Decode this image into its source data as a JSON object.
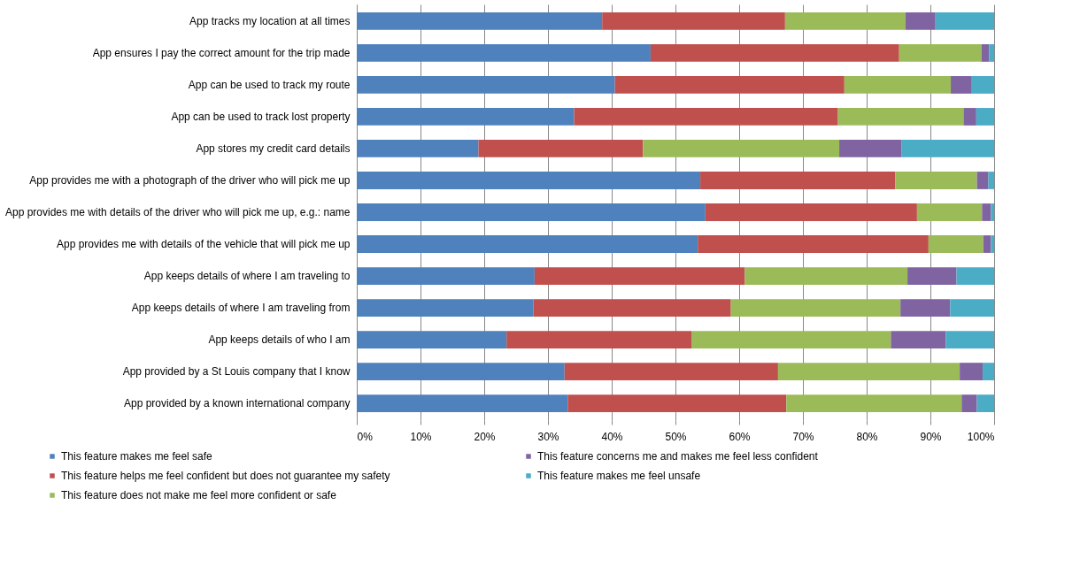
{
  "chart_data": {
    "type": "bar",
    "orientation": "horizontal",
    "stacked": true,
    "grid": "x",
    "legend": "bottom",
    "categories": [
      "App tracks my location at all times",
      "App ensures I pay the correct amount for the trip made",
      "App can be used to track my route",
      "App can be used to track lost property",
      "App stores my credit card details",
      "App provides me with a photograph of the driver who will pick me up",
      "App provides me with details of the driver who will pick me up, e.g.: name",
      "App provides me with details of the vehicle that will pick me up",
      "App keeps details of where I am traveling to",
      "App keeps details of where I am traveling from",
      "App keeps details of who I am",
      "App provided by a St Louis company that I know",
      "App provided by a known international company"
    ],
    "xlim": [
      0,
      100
    ],
    "xticks": [
      {
        "value": 0,
        "label": "0%"
      },
      {
        "value": 10,
        "label": "10%"
      },
      {
        "value": 20,
        "label": "20%"
      },
      {
        "value": 30,
        "label": "30%"
      },
      {
        "value": 40,
        "label": "40%"
      },
      {
        "value": 50,
        "label": "50%"
      },
      {
        "value": 60,
        "label": "60%"
      },
      {
        "value": 70,
        "label": "70%"
      },
      {
        "value": 80,
        "label": "80%"
      },
      {
        "value": 90,
        "label": "90%"
      },
      {
        "value": 100,
        "label": "100%"
      }
    ],
    "series": [
      {
        "name": "This feature makes me feel safe",
        "color": "#4f81bd",
        "values": [
          38.5,
          46.1,
          40.5,
          34.1,
          19.1,
          53.9,
          54.7,
          53.5,
          27.9,
          27.7,
          23.5,
          32.6,
          33.1
        ]
      },
      {
        "name": "This feature helps me feel confident but does not guarantee my safety",
        "color": "#c0504d",
        "values": [
          28.7,
          39.0,
          36.0,
          41.4,
          25.8,
          30.6,
          33.2,
          36.2,
          33.0,
          31.0,
          29.0,
          33.5,
          34.3
        ]
      },
      {
        "name": "This feature does not make me feel more confident or safe",
        "color": "#9bbb59",
        "values": [
          18.9,
          12.9,
          16.7,
          19.7,
          30.8,
          12.8,
          10.2,
          8.6,
          25.5,
          26.6,
          31.3,
          28.5,
          27.5
        ]
      },
      {
        "name": "This feature concerns me and makes me feel less confident",
        "color": "#8064a2",
        "values": [
          4.7,
          1.2,
          3.3,
          2.0,
          9.8,
          1.8,
          1.4,
          1.2,
          7.7,
          7.8,
          8.6,
          3.6,
          2.4
        ]
      },
      {
        "name": "This feature makes me feel unsafe",
        "color": "#4bacc6",
        "values": [
          9.2,
          0.8,
          3.5,
          2.8,
          14.5,
          0.9,
          0.5,
          0.5,
          5.9,
          6.9,
          7.6,
          1.8,
          2.7
        ]
      }
    ]
  }
}
